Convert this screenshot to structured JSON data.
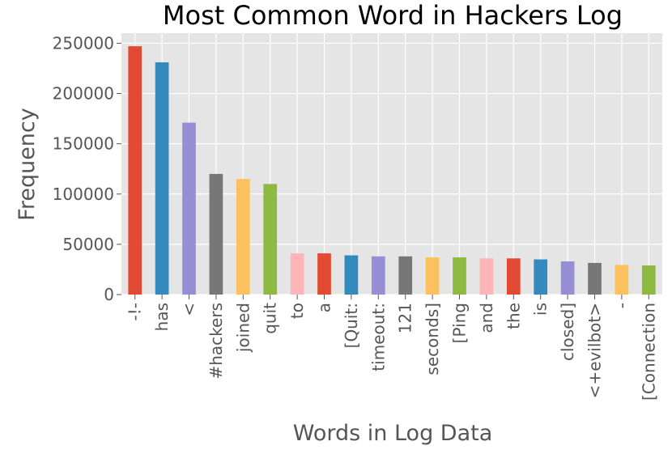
{
  "chart_data": {
    "type": "bar",
    "title": "Most Common Word in Hackers Log",
    "xlabel": "Words in Log Data",
    "ylabel": "Frequency",
    "ylim": [
      0,
      260000
    ],
    "yticks": [
      0,
      50000,
      100000,
      150000,
      200000,
      250000
    ],
    "grid": true,
    "legend": "none",
    "categories": [
      "-!-",
      "has",
      "<",
      "#hackers",
      "joined",
      "quit",
      "to",
      "a",
      "[Quit:",
      "timeout:",
      "121",
      "seconds]",
      "[Ping",
      "and",
      "the",
      "is",
      "closed]",
      "<+evilbot>",
      "-",
      "[Connection"
    ],
    "values": [
      247000,
      231000,
      171000,
      120000,
      115000,
      110000,
      41000,
      41000,
      39000,
      38000,
      38000,
      37000,
      37000,
      36000,
      36000,
      35000,
      33000,
      31500,
      29500,
      29000
    ],
    "colors": [
      "#E24A33",
      "#348ABD",
      "#988ED5",
      "#777777",
      "#FBC15E",
      "#8EBA42",
      "#FFB5B8"
    ],
    "style": {
      "plot_background": "#E5E5E5",
      "grid_color": "#FFFFFF"
    }
  }
}
